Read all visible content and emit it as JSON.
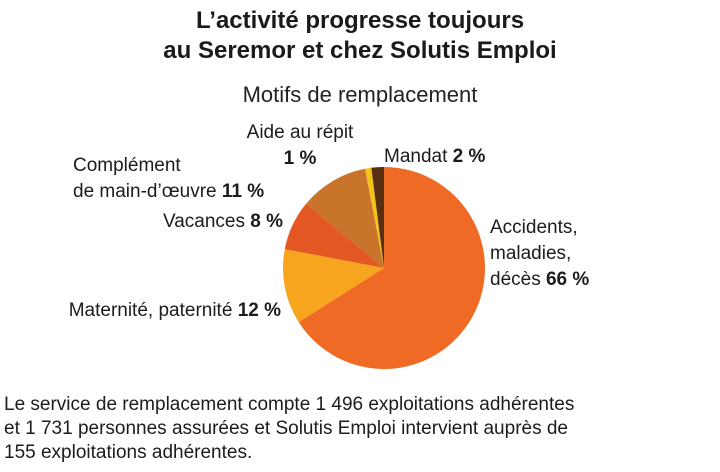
{
  "title_line1": "L’activité progresse toujours",
  "title_line2": "au Seremor et chez Solutis Emploi",
  "chart_data": {
    "type": "pie",
    "title": "Motifs de remplacement",
    "slices": [
      {
        "name": "Accidents, maladies, décès",
        "lines": [
          "Accidents,",
          "maladies,",
          "décès"
        ],
        "value": 66,
        "pct": "66 %",
        "color": "#EF6A25"
      },
      {
        "name": "Maternité, paternité",
        "lines": [
          "Maternité, paternité"
        ],
        "value": 12,
        "pct": "12 %",
        "color": "#F7A41E"
      },
      {
        "name": "Vacances",
        "lines": [
          "Vacances"
        ],
        "value": 8,
        "pct": "8 %",
        "color": "#E35822"
      },
      {
        "name": "Complément de main-d’œuvre",
        "lines": [
          "Complément",
          "de main-d’œuvre"
        ],
        "value": 11,
        "pct": "11 %",
        "color": "#C8742A"
      },
      {
        "name": "Aide au répit",
        "lines": [
          "Aide au répit"
        ],
        "value": 1,
        "pct": "1 %",
        "color": "#F2C318"
      },
      {
        "name": "Mandat",
        "lines": [
          "Mandat"
        ],
        "value": 2,
        "pct": "2 %",
        "color": "#5A2E12"
      }
    ]
  },
  "footnote": {
    "line1": "Le service de remplacement compte 1 496 exploitations adhérentes",
    "line2": "et 1 731 personnes assurées et Solutis Emploi intervient auprès de",
    "line3": "155 exploitations adhérentes."
  }
}
